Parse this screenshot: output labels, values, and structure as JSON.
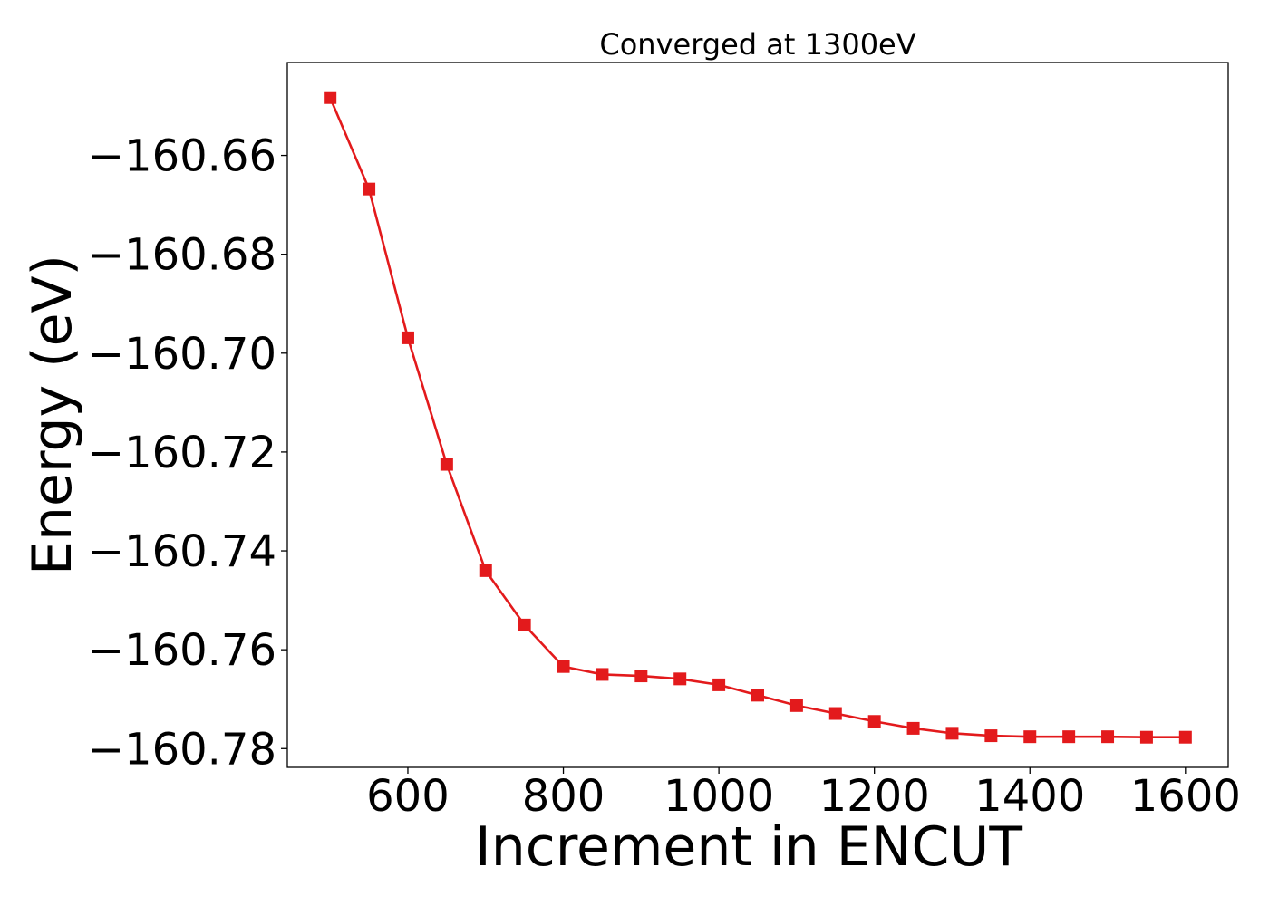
{
  "chart_data": {
    "type": "line",
    "title": "Converged at 1300eV",
    "xlabel": "Increment in ENCUT",
    "ylabel": "Energy (eV)",
    "xlim": [
      445,
      1655
    ],
    "ylim": [
      -160.7838,
      -160.6412
    ],
    "xticks": [
      600,
      800,
      1000,
      1200,
      1400,
      1600
    ],
    "yticks": [
      -160.66,
      -160.68,
      -160.7,
      -160.72,
      -160.74,
      -160.76,
      -160.78
    ],
    "ytick_labels": [
      "−160.66",
      "−160.68",
      "−160.70",
      "−160.72",
      "−160.74",
      "−160.76",
      "−160.78"
    ],
    "grid": false,
    "marker": "square",
    "series": [
      {
        "color": "#e31a1c",
        "x": [
          500,
          550,
          600,
          650,
          700,
          750,
          800,
          850,
          900,
          950,
          1000,
          1050,
          1100,
          1150,
          1200,
          1250,
          1300,
          1350,
          1400,
          1450,
          1500,
          1550,
          1600
        ],
        "y": [
          -160.6483,
          -160.6668,
          -160.6969,
          -160.7225,
          -160.744,
          -160.755,
          -160.7634,
          -160.765,
          -160.7653,
          -160.7659,
          -160.7671,
          -160.7692,
          -160.7713,
          -160.7729,
          -160.7745,
          -160.7759,
          -160.7769,
          -160.7774,
          -160.7776,
          -160.7776,
          -160.7776,
          -160.7777,
          -160.7777
        ]
      }
    ]
  }
}
